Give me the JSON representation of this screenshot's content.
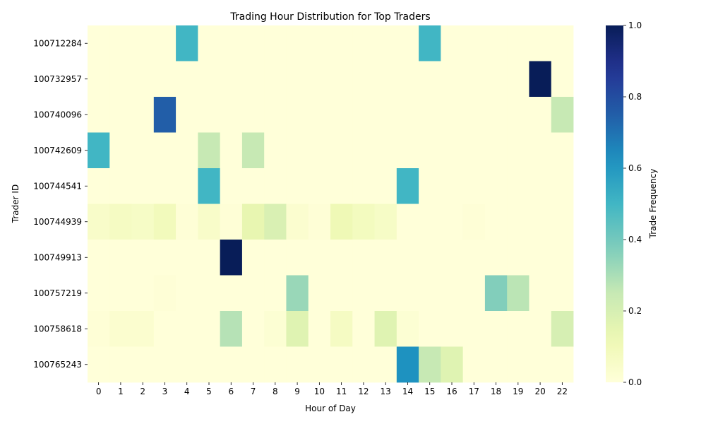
{
  "chart_data": {
    "type": "heatmap",
    "title": "Trading Hour Distribution for Top Traders",
    "xlabel": "Hour of Day",
    "ylabel": "Trader ID",
    "colorbar_label": "Trade Frequency",
    "colormap": "YlGnBu",
    "vmin": 0.0,
    "vmax": 1.0,
    "colorbar_ticks": [
      "0.0",
      "0.2",
      "0.4",
      "0.6",
      "0.8",
      "1.0"
    ],
    "x_categories": [
      "0",
      "1",
      "2",
      "3",
      "4",
      "5",
      "6",
      "7",
      "8",
      "9",
      "10",
      "11",
      "12",
      "13",
      "14",
      "15",
      "16",
      "17",
      "18",
      "19",
      "20",
      "22"
    ],
    "y_categories": [
      "100712284",
      "100732957",
      "100740096",
      "100742609",
      "100744541",
      "100744939",
      "100749913",
      "100757219",
      "100758618",
      "100765243"
    ],
    "values": [
      [
        0,
        0,
        0,
        0,
        0.5,
        0,
        0,
        0,
        0,
        0,
        0,
        0,
        0,
        0,
        0,
        0.5,
        0,
        0,
        0,
        0,
        0,
        0
      ],
      [
        0,
        0,
        0,
        0,
        0,
        0,
        0,
        0,
        0,
        0,
        0,
        0,
        0,
        0,
        0,
        0,
        0,
        0,
        0,
        0,
        1.0,
        0
      ],
      [
        0,
        0,
        0,
        0.75,
        0,
        0,
        0,
        0,
        0,
        0,
        0,
        0,
        0,
        0,
        0,
        0,
        0,
        0,
        0,
        0,
        0,
        0.25
      ],
      [
        0.5,
        0,
        0,
        0,
        0,
        0.25,
        0,
        0.25,
        0,
        0,
        0,
        0,
        0,
        0,
        0,
        0,
        0,
        0,
        0,
        0,
        0,
        0
      ],
      [
        0,
        0,
        0,
        0,
        0,
        0.5,
        0,
        0,
        0,
        0,
        0,
        0,
        0,
        0,
        0.5,
        0,
        0,
        0,
        0,
        0,
        0,
        0
      ],
      [
        0.05,
        0.07,
        0.06,
        0.09,
        0.01,
        0.05,
        0.01,
        0.14,
        0.19,
        0.03,
        0.01,
        0.11,
        0.08,
        0.06,
        0,
        0,
        0,
        0.01,
        0,
        0,
        0,
        0
      ],
      [
        0,
        0,
        0,
        0,
        0,
        0,
        1.0,
        0,
        0,
        0,
        0,
        0,
        0,
        0,
        0,
        0,
        0,
        0,
        0,
        0,
        0,
        0
      ],
      [
        0,
        0,
        0,
        0.01,
        0,
        0,
        0,
        0,
        0,
        0.33,
        0,
        0,
        0,
        0,
        0,
        0,
        0,
        0,
        0.37,
        0.27,
        0,
        0
      ],
      [
        0.01,
        0.03,
        0.03,
        0,
        0,
        0,
        0.28,
        0,
        0.02,
        0.17,
        0,
        0.07,
        0,
        0.17,
        0.02,
        0,
        0,
        0,
        0,
        0,
        0,
        0.2
      ],
      [
        0,
        0,
        0,
        0,
        0,
        0,
        0,
        0,
        0,
        0,
        0,
        0,
        0,
        0,
        0.62,
        0.25,
        0.17,
        0,
        0,
        0,
        0,
        0
      ]
    ]
  }
}
